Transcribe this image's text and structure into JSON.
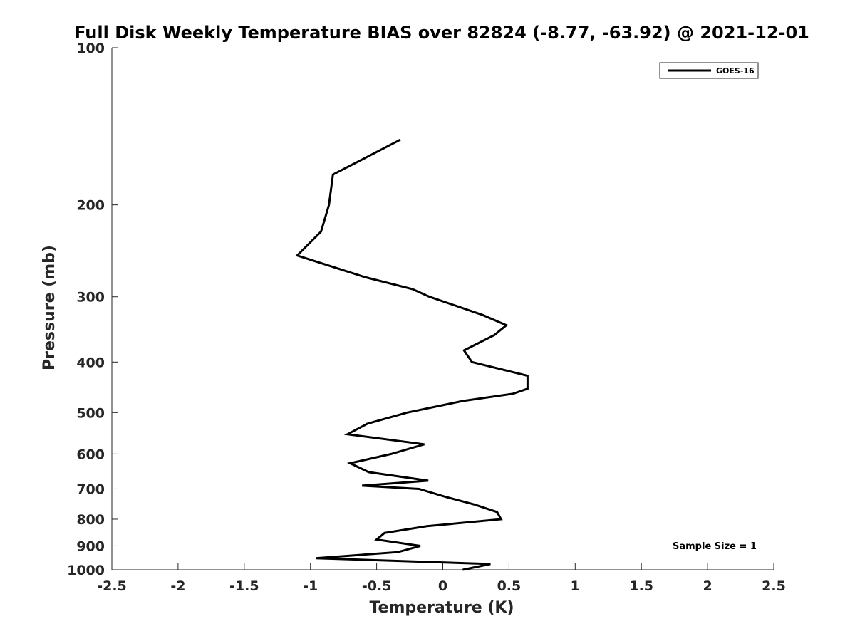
{
  "chart_data": {
    "type": "line",
    "title": "Full Disk Weekly Temperature BIAS over 82824 (-8.77, -63.92) @ 2021-12-01",
    "xlabel": "Temperature (K)",
    "ylabel": "Pressure (mb)",
    "xlim": [
      -2.5,
      2.5
    ],
    "ylim": [
      100,
      1000
    ],
    "y_scale": "log",
    "y_inverted": true,
    "x_ticks": [
      "-2.5",
      "-2",
      "-1.5",
      "-1",
      "-0.5",
      "0",
      "0.5",
      "1",
      "1.5",
      "2",
      "2.5"
    ],
    "y_ticks": [
      "100",
      "200",
      "300",
      "400",
      "500",
      "600",
      "700",
      "800",
      "900",
      "1000"
    ],
    "grid": false,
    "legend_position": "top-right",
    "annotation": "Sample Size = 1",
    "series": [
      {
        "name": "GOES-16",
        "color": "#000000",
        "points": [
          {
            "x": -0.32,
            "p": 150
          },
          {
            "x": -0.83,
            "p": 175
          },
          {
            "x": -0.86,
            "p": 200
          },
          {
            "x": -0.92,
            "p": 225
          },
          {
            "x": -1.1,
            "p": 250
          },
          {
            "x": -0.59,
            "p": 275
          },
          {
            "x": -0.23,
            "p": 290
          },
          {
            "x": -0.1,
            "p": 300
          },
          {
            "x": 0.3,
            "p": 325
          },
          {
            "x": 0.48,
            "p": 340
          },
          {
            "x": 0.39,
            "p": 355
          },
          {
            "x": 0.16,
            "p": 380
          },
          {
            "x": 0.22,
            "p": 400
          },
          {
            "x": 0.64,
            "p": 425
          },
          {
            "x": 0.64,
            "p": 450
          },
          {
            "x": 0.53,
            "p": 460
          },
          {
            "x": 0.15,
            "p": 475
          },
          {
            "x": -0.27,
            "p": 500
          },
          {
            "x": -0.57,
            "p": 525
          },
          {
            "x": -0.72,
            "p": 550
          },
          {
            "x": -0.14,
            "p": 575
          },
          {
            "x": -0.39,
            "p": 600
          },
          {
            "x": -0.7,
            "p": 625
          },
          {
            "x": -0.56,
            "p": 650
          },
          {
            "x": -0.11,
            "p": 675
          },
          {
            "x": -0.61,
            "p": 690
          },
          {
            "x": -0.18,
            "p": 700
          },
          {
            "x": 0.02,
            "p": 725
          },
          {
            "x": 0.24,
            "p": 750
          },
          {
            "x": 0.41,
            "p": 775
          },
          {
            "x": 0.44,
            "p": 800
          },
          {
            "x": -0.12,
            "p": 825
          },
          {
            "x": -0.44,
            "p": 850
          },
          {
            "x": -0.5,
            "p": 875
          },
          {
            "x": -0.17,
            "p": 900
          },
          {
            "x": -0.34,
            "p": 925
          },
          {
            "x": -0.96,
            "p": 950
          },
          {
            "x": 0.36,
            "p": 975
          },
          {
            "x": 0.15,
            "p": 1000
          }
        ]
      }
    ]
  }
}
